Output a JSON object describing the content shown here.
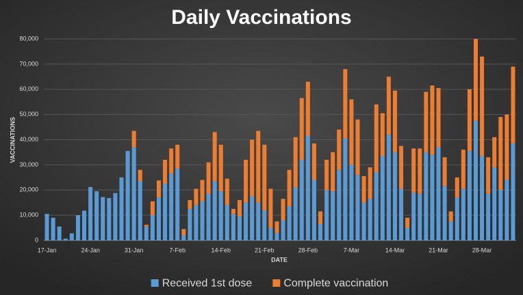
{
  "chart_data": {
    "type": "stacked_bar",
    "title": "Daily Vaccinations",
    "x_label": "DATE",
    "y_label": "VACCINATIONS",
    "categories": [
      "17-Jan",
      null,
      null,
      null,
      null,
      null,
      null,
      "24-Jan",
      null,
      null,
      null,
      null,
      null,
      null,
      "31-Jan",
      null,
      null,
      null,
      null,
      null,
      null,
      "7-Feb",
      null,
      null,
      null,
      null,
      null,
      null,
      "14-Feb",
      null,
      null,
      null,
      null,
      null,
      null,
      "21-Feb",
      null,
      null,
      null,
      null,
      null,
      null,
      "28-Feb",
      null,
      null,
      null,
      null,
      null,
      null,
      "7-Mar",
      null,
      null,
      null,
      null,
      null,
      null,
      "14-Mar",
      null,
      null,
      null,
      null,
      null,
      null,
      "21-Mar",
      null,
      null,
      null,
      null,
      null,
      null,
      "28-Mar",
      null,
      null,
      null,
      null,
      null
    ],
    "series": [
      {
        "name": "Received 1st dose",
        "color": "#5b9bd5",
        "values": [
          10500,
          9000,
          5500,
          700,
          2800,
          10000,
          11800,
          21200,
          19500,
          17200,
          16800,
          18800,
          25000,
          35500,
          37000,
          23500,
          5500,
          10000,
          17000,
          22500,
          26500,
          28500,
          2000,
          12500,
          14000,
          15500,
          18500,
          23500,
          19500,
          14000,
          10500,
          9500,
          15000,
          17500,
          15000,
          12000,
          5000,
          3000,
          8000,
          13500,
          21000,
          32000,
          41500,
          24000,
          6500,
          20000,
          19500,
          28000,
          40500,
          30000,
          26000,
          15000,
          16500,
          27000,
          33500,
          42000,
          35000,
          20500,
          5000,
          19000,
          18500,
          35000,
          34000,
          37000,
          21500,
          7500,
          17000,
          20500,
          35500,
          47500,
          33500,
          18500,
          29000,
          20000,
          24000,
          38500
        ]
      },
      {
        "name": "Complete vaccination",
        "color": "#ed7d31",
        "values": [
          0,
          0,
          0,
          0,
          0,
          0,
          0,
          0,
          0,
          0,
          0,
          0,
          0,
          0,
          6500,
          4500,
          700,
          5500,
          6800,
          9500,
          10000,
          9500,
          2500,
          3500,
          6500,
          8500,
          12500,
          19500,
          18500,
          10500,
          2000,
          6500,
          17000,
          22500,
          28500,
          26000,
          15500,
          4500,
          8500,
          14500,
          20000,
          24500,
          21500,
          14500,
          5000,
          12000,
          15500,
          16000,
          27500,
          26000,
          22000,
          10500,
          12500,
          27000,
          17000,
          23000,
          24500,
          17000,
          4000,
          17500,
          18000,
          24000,
          27500,
          23500,
          11500,
          4000,
          8000,
          15500,
          24500,
          32500,
          39500,
          14500,
          12000,
          29000,
          26000,
          30500
        ]
      }
    ],
    "ylim": [
      0,
      80000
    ],
    "yticks": [
      0,
      {
        "value": 10000,
        "label": "10,000"
      },
      {
        "value": 20000,
        "label": "20,000"
      },
      {
        "value": 30000,
        "label": "30,000"
      },
      {
        "value": 40000,
        "label": "40,000"
      },
      {
        "value": 50000,
        "label": "50,000"
      },
      {
        "value": 60000,
        "label": "60,000"
      },
      {
        "value": 70000,
        "label": "70,000"
      },
      {
        "value": 80000,
        "label": "80,000"
      }
    ],
    "grid": true,
    "legend": "bottom"
  }
}
